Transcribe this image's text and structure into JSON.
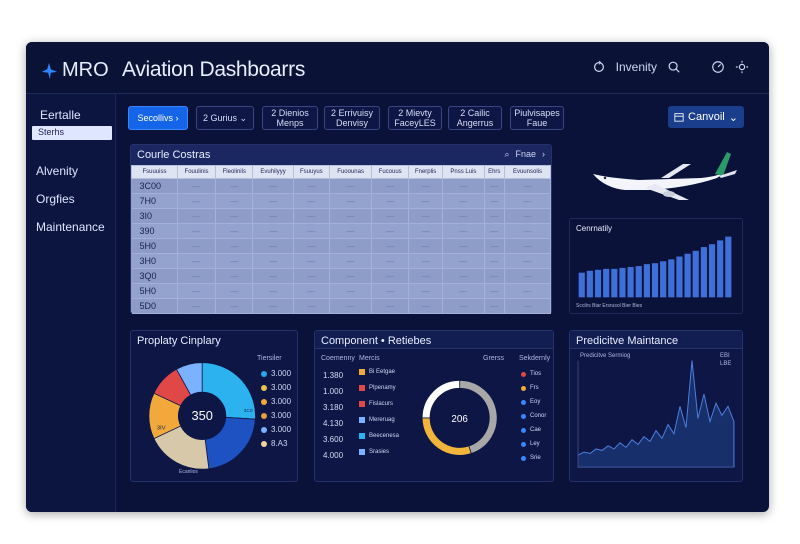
{
  "app": {
    "logo_text": "MRO",
    "title": "Aviation Dashboarrs",
    "header_right_label": "Invenity"
  },
  "sidebar": {
    "label": "Eertalle",
    "search_value": "Sterhs",
    "items": [
      "Alvenity",
      "Orgfies",
      "Maintenance"
    ]
  },
  "filters": {
    "chips": [
      "Secollivs",
      "2 Gurius",
      "2 Dienios\nMenps",
      "2 Errivuisy\nDenvisy",
      "2 Mievty\nFaceyLES",
      "2 Cailic\nAngerrus",
      "Piulvisapes\nFaue"
    ],
    "cancel_label": "Canvoil"
  },
  "table": {
    "title": "Courle Costras",
    "tools": "Fnae",
    "headers": [
      "Fsuuuiss",
      "Fouulinis",
      "Fleolinils",
      "Evuhilyyy",
      "Fsuuyus",
      "Fuoounas",
      "Fucouus",
      "Fnerplis",
      "Pnss Luis",
      "Ehrs",
      "Evuunsolis"
    ],
    "rows": [
      "3C00",
      "7H0",
      "3I0",
      "390",
      "5H0",
      "3H0",
      "3Q0",
      "5H0",
      "5D0"
    ],
    "cell_value": "—"
  },
  "bars": {
    "title": "Cenrnatily",
    "legend": "Sccilrs  Biar  Ersrusol  Bier  Bies",
    "values": [
      26,
      28,
      29,
      30,
      30,
      31,
      32,
      33,
      35,
      36,
      38,
      40,
      43,
      46,
      49,
      53,
      56,
      60,
      64
    ]
  },
  "donut1": {
    "title": "Proplaty Cinplary",
    "center_value": "350",
    "legend_title": "Tiersiler",
    "legend": [
      {
        "label": "3.000",
        "color": "#28a8ea"
      },
      {
        "label": "3.000",
        "color": "#e8c34a"
      },
      {
        "label": "3.000",
        "color": "#f2a93b"
      },
      {
        "label": "3.000",
        "color": "#e2a041"
      },
      {
        "label": "3.000",
        "color": "#7bb2ff"
      },
      {
        "label": "8.A3",
        "color": "#f0d2a0"
      }
    ],
    "slice_labels": [
      "3IV",
      "3C0"
    ],
    "caption": "Ecanlios",
    "slices": [
      {
        "value": 26,
        "color": "#2db2f0"
      },
      {
        "value": 22,
        "color": "#1e52c2"
      },
      {
        "value": 20,
        "color": "#d8c8aa"
      },
      {
        "value": 14,
        "color": "#f2a93b"
      },
      {
        "value": 10,
        "color": "#e04848"
      },
      {
        "value": 8,
        "color": "#7bb2ff"
      }
    ]
  },
  "comp": {
    "title": "Component • Retiebes",
    "col1": "Coemenny",
    "col2": "Mercis",
    "col3": "Grerss",
    "col4": "Sekdernly",
    "values": [
      "1.380",
      "1.000",
      "3.180",
      "4.130",
      "3.600",
      "4.000"
    ],
    "rows": [
      {
        "label": "Bi Eetgae",
        "color": "#f2a93b"
      },
      {
        "label": "Plpenamy",
        "color": "#e04848"
      },
      {
        "label": "Fislacurs",
        "color": "#e04848"
      },
      {
        "label": "Mereruag",
        "color": "#7bb2ff"
      },
      {
        "label": "Beecenesa",
        "color": "#2db2f0"
      },
      {
        "label": "Srasies",
        "color": "#7bb2ff"
      }
    ],
    "center_value": "206",
    "right_legend": [
      {
        "label": "Tios",
        "color": "#e04848"
      },
      {
        "label": "Frs",
        "color": "#f2a93b"
      },
      {
        "label": "Eoy",
        "color": "#3b86ff"
      },
      {
        "label": "Conor",
        "color": "#3b86ff"
      },
      {
        "label": "Cae",
        "color": "#3b86ff"
      },
      {
        "label": "Ley",
        "color": "#3b86ff"
      },
      {
        "label": "Srie",
        "color": "#3b86ff"
      }
    ],
    "ring": [
      {
        "value": 45,
        "color": "#a8a8a8"
      },
      {
        "value": 30,
        "color": "#f2b53b"
      },
      {
        "value": 25,
        "color": "#ffffff"
      }
    ]
  },
  "pred": {
    "title": "Predicitve Maintance",
    "subtitle": "Predicitve Sermiog",
    "legend": [
      "EBI",
      "LBE"
    ],
    "values": [
      8,
      10,
      9,
      12,
      11,
      14,
      12,
      16,
      13,
      18,
      15,
      20,
      17,
      24,
      19,
      28,
      22,
      40,
      26,
      70,
      32,
      48,
      30,
      42,
      34,
      40,
      30
    ]
  }
}
